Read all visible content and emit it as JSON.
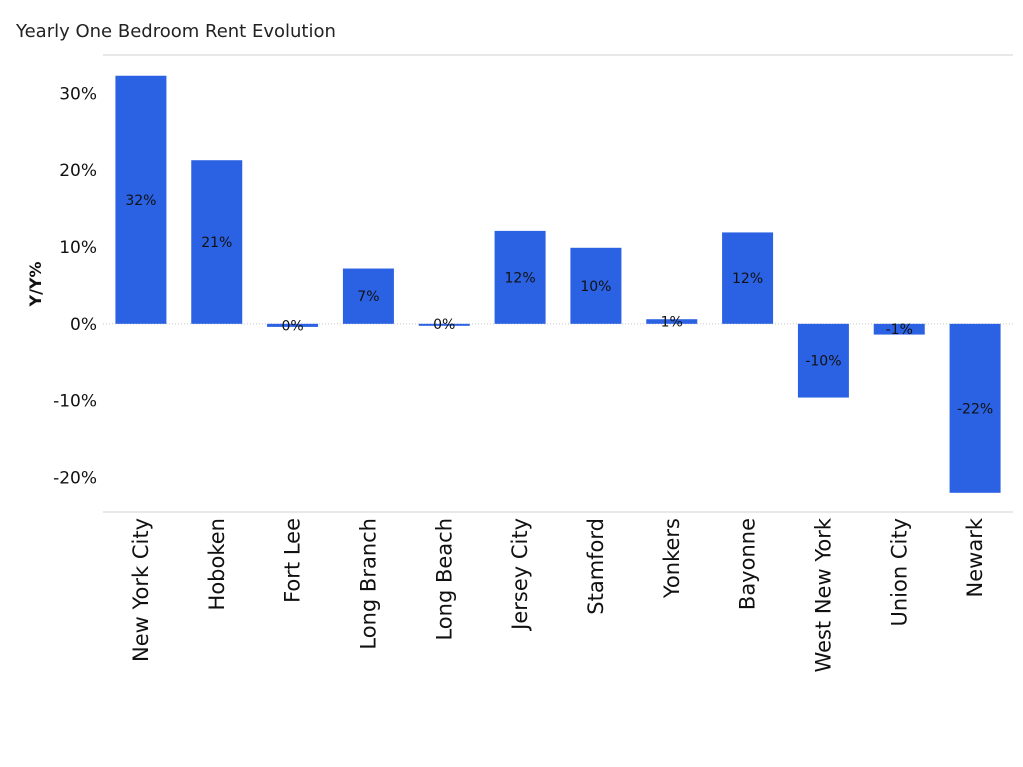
{
  "chart_data": {
    "type": "bar",
    "title": "Yearly One Bedroom Rent Evolution",
    "ylabel": "Y/Y%",
    "xlabel": "",
    "categories": [
      "New York City",
      "Hoboken",
      "Fort Lee",
      "Long Branch",
      "Long Beach",
      "Jersey City",
      "Stamford",
      "Yonkers",
      "Bayonne",
      "West New York",
      "Union City",
      "Newark"
    ],
    "values": [
      32.3,
      21.3,
      -0.4,
      7.2,
      -0.1,
      12.1,
      9.9,
      0.6,
      11.9,
      -9.6,
      -1.4,
      -22.0
    ],
    "data_labels": [
      "32%",
      "21%",
      "0%",
      "7%",
      "0%",
      "12%",
      "10%",
      "1%",
      "12%",
      "-10%",
      "-1%",
      "-22%"
    ],
    "y_ticks": [
      -20,
      -10,
      0,
      10,
      20,
      30
    ],
    "y_tick_labels": [
      "-20%",
      "-10%",
      "0%",
      "10%",
      "20%",
      "30%"
    ],
    "ylim": [
      -24.5,
      35
    ],
    "grid": false,
    "bar_color": "#2b62e3"
  }
}
